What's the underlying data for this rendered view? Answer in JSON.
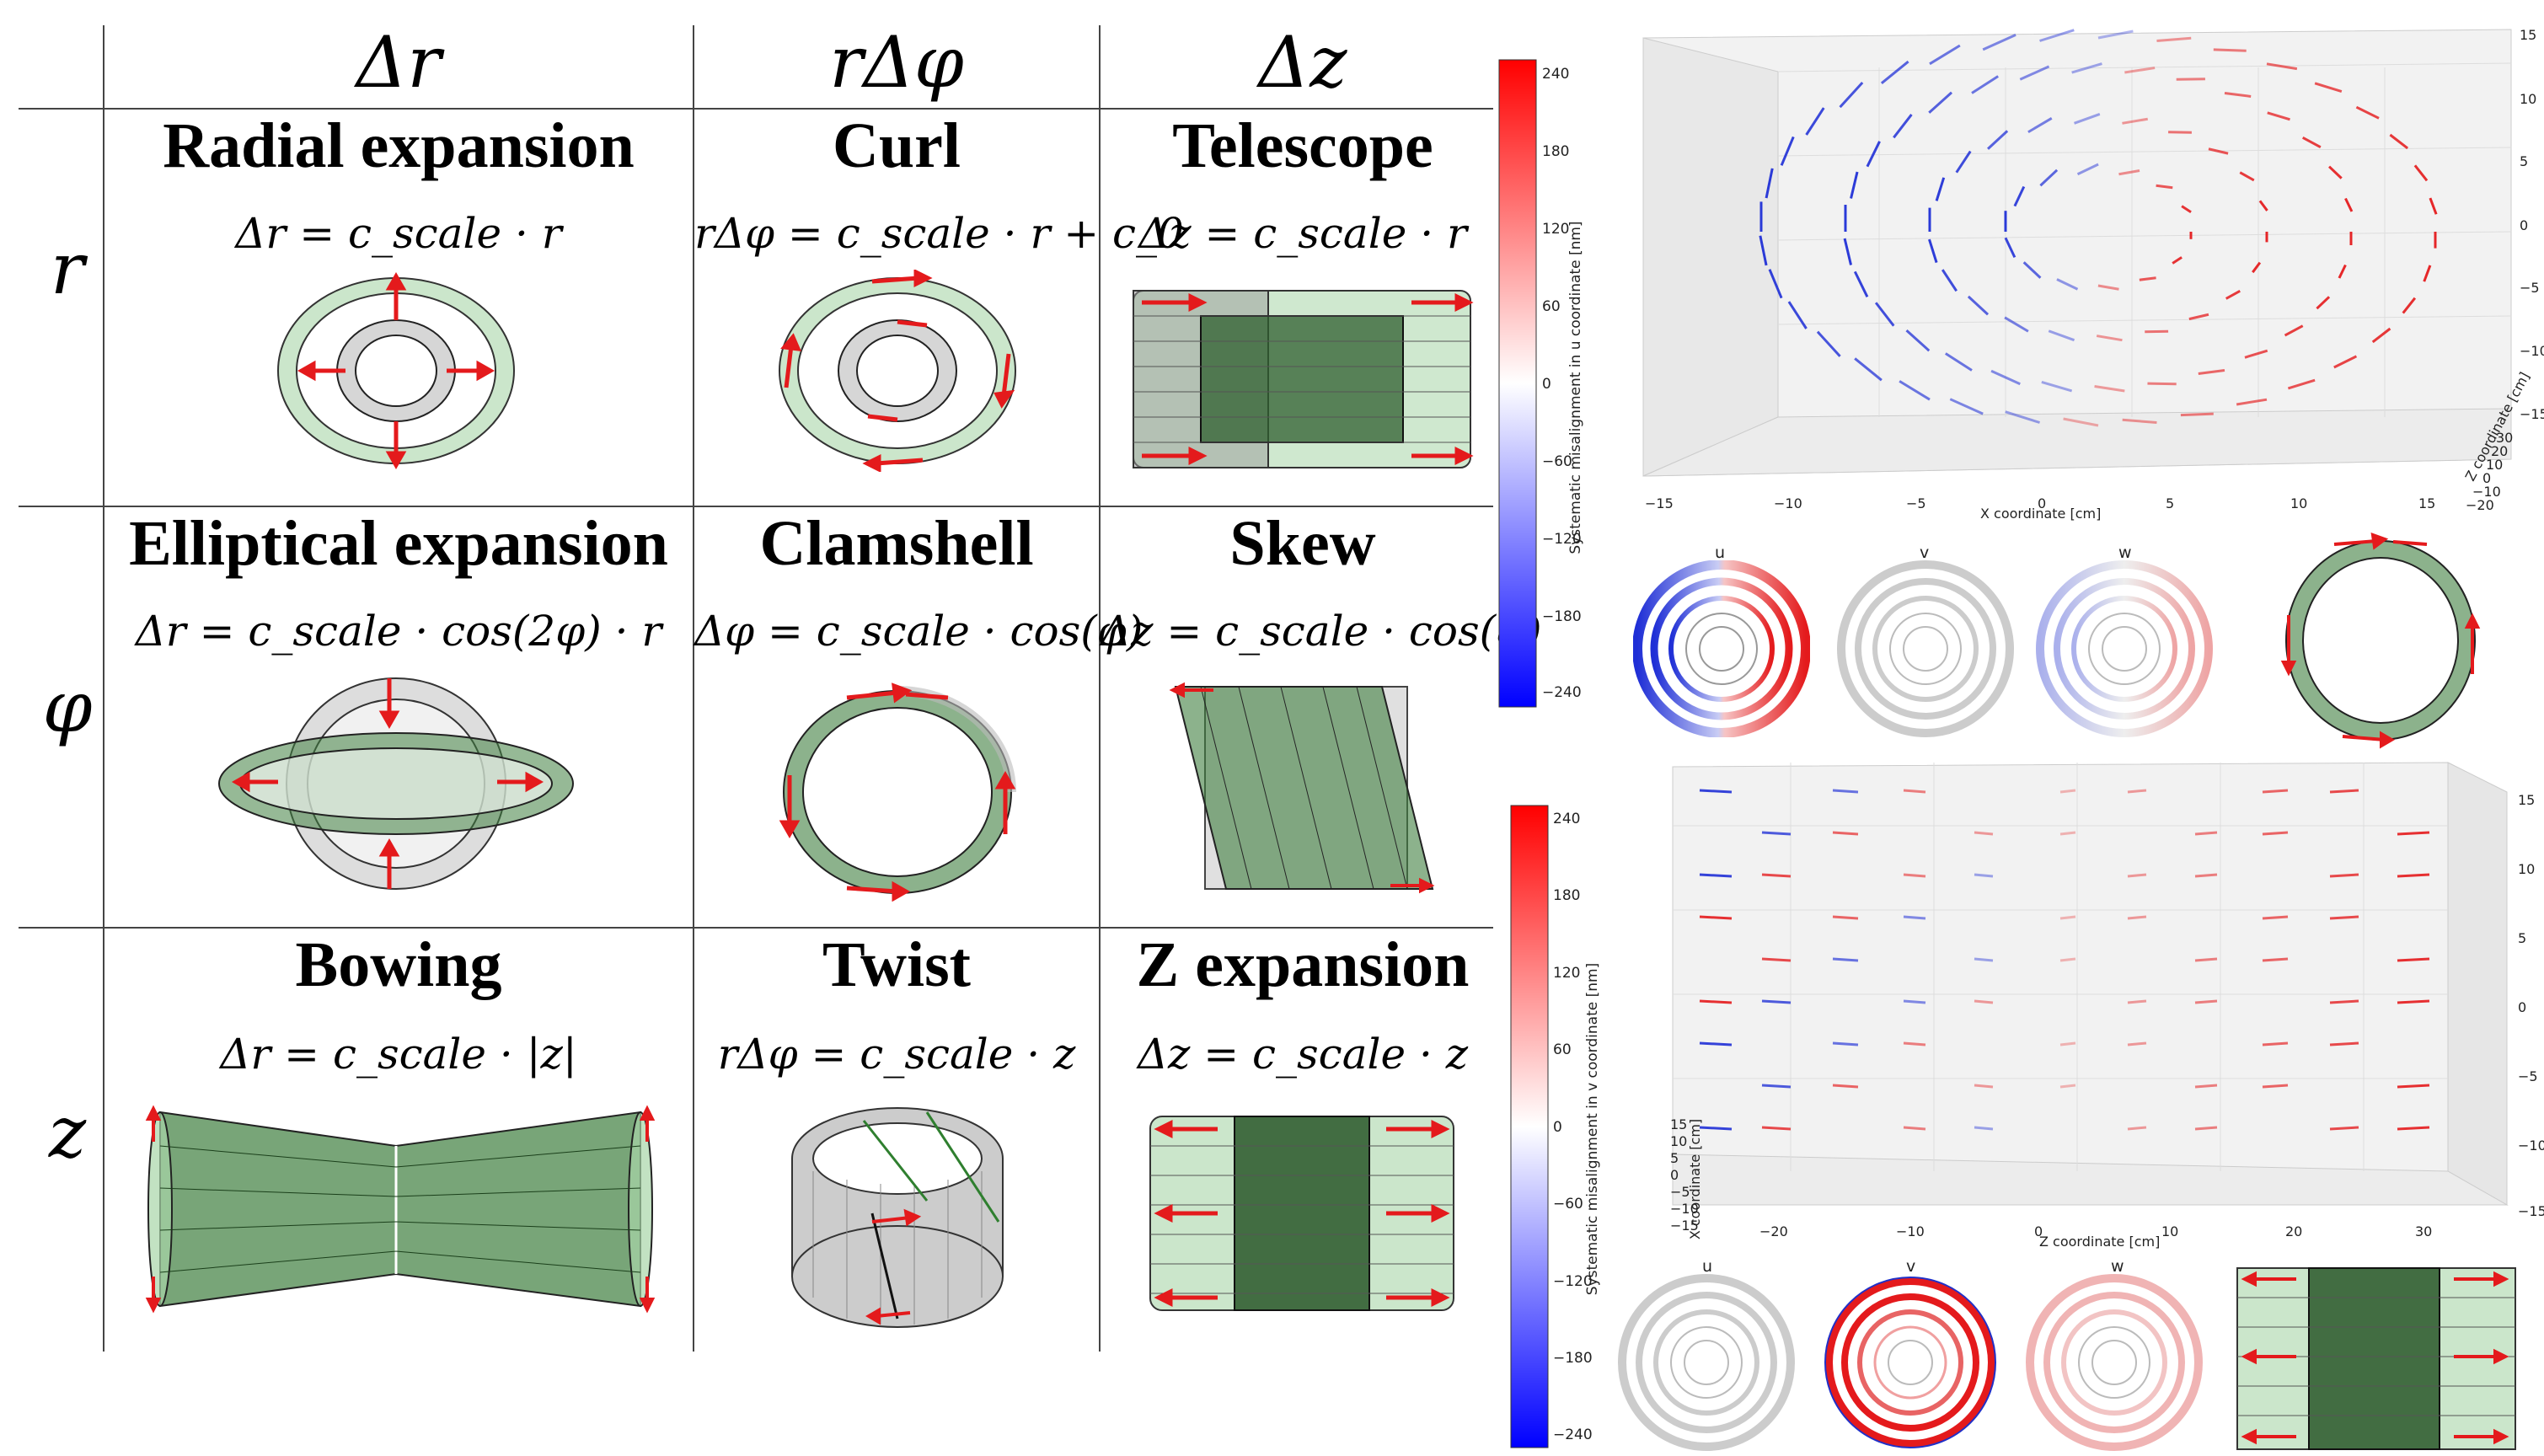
{
  "column_headers": [
    "Δr",
    "rΔφ",
    "Δz"
  ],
  "row_headers": [
    "r",
    "φ",
    "z"
  ],
  "cells": [
    {
      "title": "Radial expansion",
      "equation": "Δr = c_scale · r",
      "icon": "radial-expansion-icon"
    },
    {
      "title": "Curl",
      "equation": "rΔφ = c_scale · r + c_0",
      "icon": "curl-icon"
    },
    {
      "title": "Telescope",
      "equation": "Δz = c_scale · r",
      "icon": "telescope-icon"
    },
    {
      "title": "Elliptical expansion",
      "equation": "Δr = c_scale · cos(2φ) · r",
      "icon": "elliptical-expansion-icon"
    },
    {
      "title": "Clamshell",
      "equation": "Δφ = c_scale · cos(φ)",
      "icon": "clamshell-icon"
    },
    {
      "title": "Skew",
      "equation": "Δz = c_scale · cos(φ)",
      "icon": "skew-icon"
    },
    {
      "title": "Bowing",
      "equation": "Δr = c_scale · |z|",
      "icon": "bowing-icon"
    },
    {
      "title": "Twist",
      "equation": "rΔφ = c_scale · z",
      "icon": "twist-icon"
    },
    {
      "title": "Z expansion",
      "equation": "Δz = c_scale · z",
      "icon": "z-expansion-icon"
    }
  ],
  "colorbars": [
    {
      "label": "Systematic misalignment in u coordinate [nm]",
      "ticks": [
        "240",
        "180",
        "120",
        "60",
        "0",
        "−60",
        "−120",
        "−180",
        "−240"
      ]
    },
    {
      "label": "Systematic misalignment in v coordinate [nm]",
      "ticks": [
        "240",
        "180",
        "120",
        "60",
        "0",
        "−60",
        "−120",
        "−180",
        "−240"
      ]
    }
  ],
  "plot_top": {
    "xlabel": "X coordinate [cm]",
    "x_ticks": [
      "−15",
      "−10",
      "−5",
      "0",
      "5",
      "10",
      "15"
    ],
    "z_ticks": [
      "15",
      "10",
      "5",
      "0",
      "−5",
      "−10",
      "−15"
    ],
    "depth_label": "Z coordinate [cm]",
    "depth_ticks": [
      "30",
      "20",
      "10",
      "0",
      "−10",
      "−20"
    ]
  },
  "plot_bottom": {
    "xlabel": "Z coordinate [cm]",
    "x_ticks": [
      "−20",
      "−10",
      "0",
      "10",
      "20",
      "30"
    ],
    "z_ticks": [
      "15",
      "10",
      "5",
      "0",
      "−5",
      "−10",
      "−15"
    ],
    "depth_label": "X coordinate [cm]",
    "depth_ticks": [
      "15",
      "10",
      "5",
      "0",
      "−5",
      "−10",
      "−15"
    ]
  },
  "mini_titles_top": [
    "u",
    "v",
    "w"
  ],
  "mini_titles_bottom": [
    "u",
    "v",
    "w"
  ],
  "colors": {
    "red": "#e41a1c",
    "blue": "#1f2fd6",
    "green": "#4a8a4a",
    "grid": "#444444"
  }
}
